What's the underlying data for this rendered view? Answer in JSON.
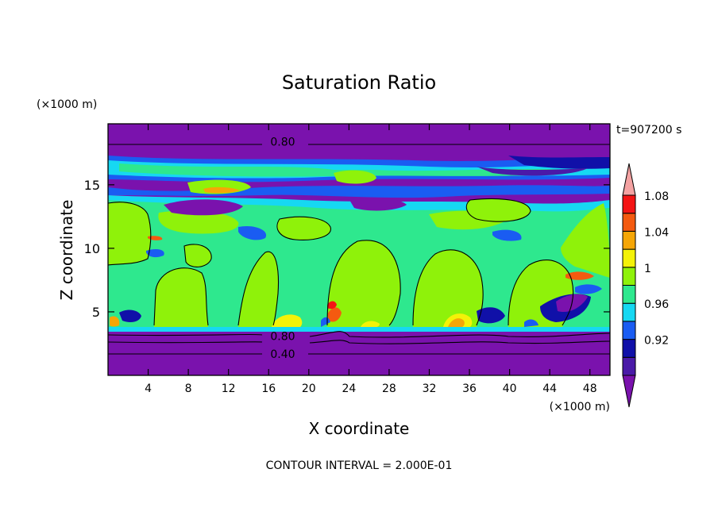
{
  "chart_data": {
    "type": "heatmap",
    "title": "Saturation Ratio",
    "time_label": "t=907200 s",
    "xlabel": "X coordinate",
    "ylabel": "Z coordinate",
    "x_unit": "(×1000 m)",
    "y_unit": "(×1000 m)",
    "xlim": [
      0,
      50
    ],
    "ylim": [
      0,
      19.8
    ],
    "xticks": [
      4,
      8,
      12,
      16,
      20,
      24,
      28,
      32,
      36,
      40,
      44,
      48
    ],
    "yticks": [
      5,
      10,
      15
    ],
    "footer": "CONTOUR INTERVAL = 2.000E-01",
    "contour_labels": [
      {
        "text": "0.80",
        "x": 17.4,
        "y": 18.4
      },
      {
        "text": "0.80",
        "x": 17.4,
        "y": 3.1
      },
      {
        "text": "0.40",
        "x": 17.4,
        "y": 1.7
      }
    ],
    "colorbar": {
      "levels": [
        "0.92",
        "0.96",
        "1",
        "1.04",
        "1.08"
      ],
      "bins": [
        {
          "name": "<0.90",
          "color": "#7a12ad"
        },
        {
          "name": "0.90-0.92",
          "color": "#4a1aa8"
        },
        {
          "name": "0.92-0.94",
          "color": "#1010a8"
        },
        {
          "name": "0.94-0.96",
          "color": "#1a5cf2"
        },
        {
          "name": "0.96-0.98",
          "color": "#16d8f2"
        },
        {
          "name": "0.98-1.00",
          "color": "#2ee88e"
        },
        {
          "name": "1.00-1.02",
          "color": "#8ff20a"
        },
        {
          "name": "1.02-1.04",
          "color": "#f4f208"
        },
        {
          "name": "1.04-1.06",
          "color": "#f6a606"
        },
        {
          "name": "1.06-1.08",
          "color": "#f45a10"
        },
        {
          "name": "1.08-1.10",
          "color": "#f41414"
        },
        {
          "name": ">1.10",
          "color": "#f4a2a2"
        }
      ]
    }
  }
}
